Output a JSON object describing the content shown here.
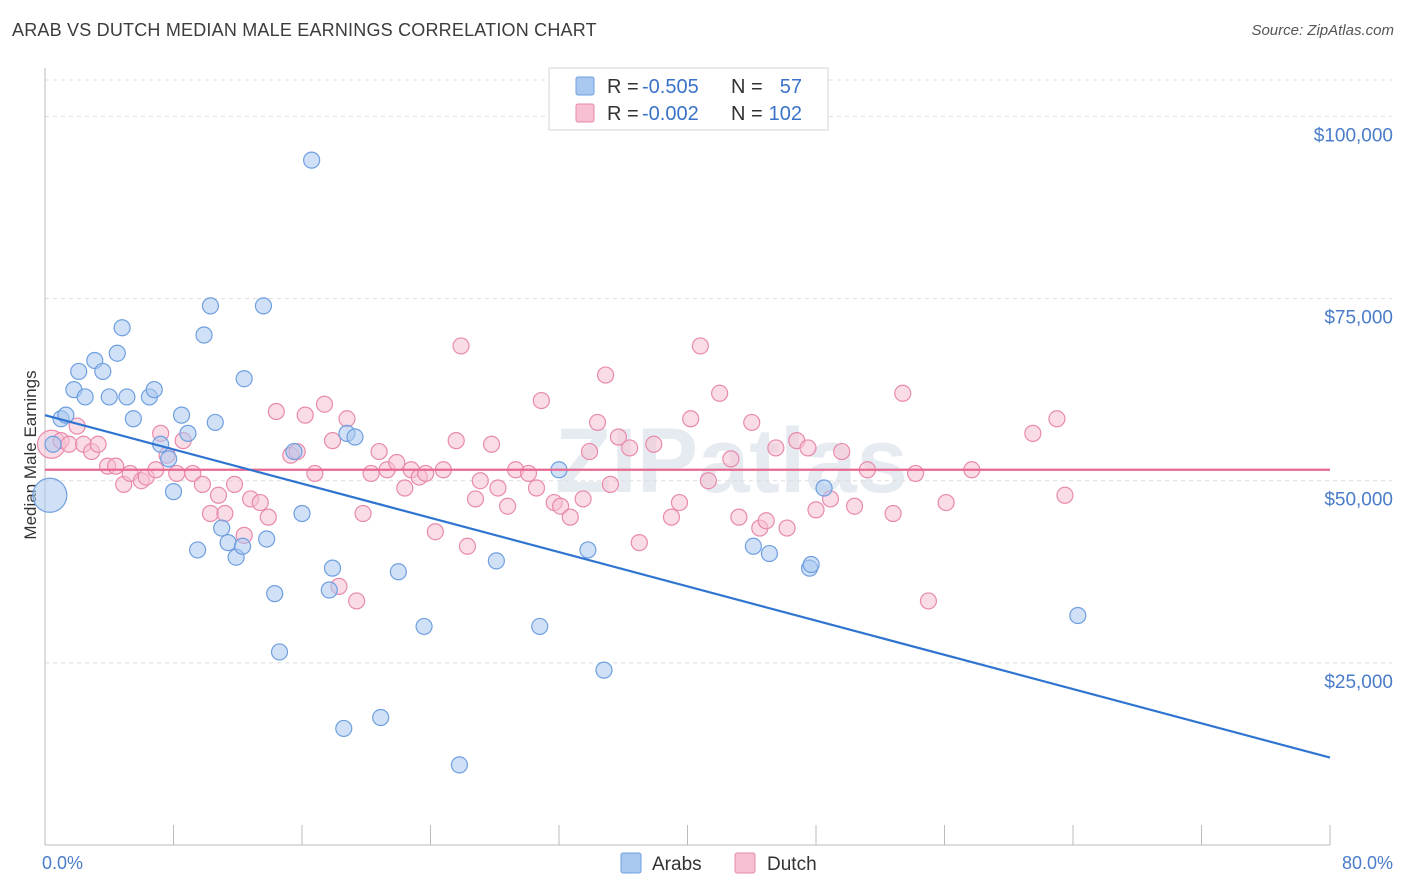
{
  "title": "ARAB VS DUTCH MEDIAN MALE EARNINGS CORRELATION CHART",
  "source": "Source: ZipAtlas.com",
  "watermark": "ZIPatlas",
  "colors": {
    "arabs_fill": "#a9c8f0",
    "arabs_stroke": "#6f9fe0",
    "arabs_line": "#2f74d0",
    "dutch_fill": "#f6bfd2",
    "dutch_stroke": "#e88aab",
    "dutch_line": "#e8688f",
    "axis_text": "#4a7cc9",
    "grid": "#dddddd"
  },
  "legend": {
    "arabs": {
      "r_label": "R =",
      "r_value": "-0.505",
      "n_label": "N =",
      "n_value": "57"
    },
    "dutch": {
      "r_label": "R =",
      "r_value": "-0.002",
      "n_label": "N =",
      "n_value": "102"
    }
  },
  "bottom_legend": {
    "arabs": "Arabs",
    "dutch": "Dutch"
  },
  "chart_data": {
    "type": "scatter",
    "title": "ARAB VS DUTCH MEDIAN MALE EARNINGS CORRELATION CHART",
    "xlabel": "",
    "ylabel": "Median Male Earnings",
    "xlim": [
      0,
      80
    ],
    "ylim": [
      0,
      105000
    ],
    "x_tick_labels": [
      "0.0%",
      "80.0%"
    ],
    "y_ticks": [
      25000,
      50000,
      75000,
      100000
    ],
    "y_tick_labels": [
      "$25,000",
      "$50,000",
      "$75,000",
      "$100,000"
    ],
    "grid": true,
    "legend_position": "top-center",
    "series": [
      {
        "name": "Arabs",
        "trend": {
          "x": [
            0,
            80
          ],
          "y": [
            59000,
            12000
          ]
        },
        "points": [
          [
            0.3,
            48000
          ],
          [
            0.5,
            55000
          ],
          [
            1.0,
            58500
          ],
          [
            1.3,
            59000
          ],
          [
            1.8,
            62500
          ],
          [
            2.1,
            65000
          ],
          [
            2.5,
            61500
          ],
          [
            3.1,
            66500
          ],
          [
            3.6,
            65000
          ],
          [
            4.0,
            61500
          ],
          [
            4.5,
            67500
          ],
          [
            4.8,
            71000
          ],
          [
            5.1,
            61500
          ],
          [
            5.5,
            58500
          ],
          [
            6.5,
            61500
          ],
          [
            6.8,
            62500
          ],
          [
            7.2,
            55000
          ],
          [
            7.7,
            53000
          ],
          [
            8.0,
            48500
          ],
          [
            8.5,
            59000
          ],
          [
            8.9,
            56500
          ],
          [
            9.5,
            40500
          ],
          [
            9.9,
            70000
          ],
          [
            10.3,
            74000
          ],
          [
            10.6,
            58000
          ],
          [
            11.0,
            43500
          ],
          [
            11.4,
            41500
          ],
          [
            11.9,
            39500
          ],
          [
            12.3,
            41000
          ],
          [
            12.4,
            64000
          ],
          [
            13.6,
            74000
          ],
          [
            13.8,
            42000
          ],
          [
            14.3,
            34500
          ],
          [
            14.6,
            26500
          ],
          [
            15.5,
            54000
          ],
          [
            16.0,
            45500
          ],
          [
            16.6,
            94000
          ],
          [
            17.7,
            35000
          ],
          [
            17.9,
            38000
          ],
          [
            18.6,
            16000
          ],
          [
            18.8,
            56500
          ],
          [
            19.3,
            56000
          ],
          [
            20.9,
            17500
          ],
          [
            22.0,
            37500
          ],
          [
            23.6,
            30000
          ],
          [
            25.8,
            11000
          ],
          [
            28.1,
            39000
          ],
          [
            30.8,
            30000
          ],
          [
            32.0,
            51500
          ],
          [
            33.8,
            40500
          ],
          [
            34.8,
            24000
          ],
          [
            44.1,
            41000
          ],
          [
            45.1,
            40000
          ],
          [
            47.6,
            38000
          ],
          [
            47.7,
            38500
          ],
          [
            48.5,
            49000
          ],
          [
            64.3,
            31500
          ]
        ]
      },
      {
        "name": "Dutch",
        "trend": {
          "x": [
            0,
            80
          ],
          "y": [
            51500,
            51500
          ]
        },
        "points": [
          [
            0.4,
            55000
          ],
          [
            1.0,
            55500
          ],
          [
            1.5,
            55000
          ],
          [
            2.0,
            57500
          ],
          [
            2.4,
            55000
          ],
          [
            2.9,
            54000
          ],
          [
            3.3,
            55000
          ],
          [
            3.9,
            52000
          ],
          [
            4.4,
            52000
          ],
          [
            4.9,
            49500
          ],
          [
            5.3,
            51000
          ],
          [
            6.0,
            50000
          ],
          [
            6.3,
            50500
          ],
          [
            6.9,
            51500
          ],
          [
            7.2,
            56500
          ],
          [
            7.6,
            53500
          ],
          [
            8.2,
            51000
          ],
          [
            8.6,
            55500
          ],
          [
            9.2,
            51000
          ],
          [
            9.8,
            49500
          ],
          [
            10.3,
            45500
          ],
          [
            10.8,
            48000
          ],
          [
            11.2,
            45500
          ],
          [
            11.8,
            49500
          ],
          [
            12.4,
            42500
          ],
          [
            12.8,
            47500
          ],
          [
            13.4,
            47000
          ],
          [
            13.9,
            45000
          ],
          [
            14.4,
            59500
          ],
          [
            15.3,
            53500
          ],
          [
            15.7,
            54000
          ],
          [
            16.2,
            59000
          ],
          [
            16.8,
            51000
          ],
          [
            17.4,
            60500
          ],
          [
            17.9,
            55500
          ],
          [
            18.3,
            35500
          ],
          [
            18.8,
            58500
          ],
          [
            19.4,
            33500
          ],
          [
            19.8,
            45500
          ],
          [
            20.3,
            51000
          ],
          [
            20.8,
            54000
          ],
          [
            21.3,
            51500
          ],
          [
            21.9,
            52500
          ],
          [
            22.4,
            49000
          ],
          [
            22.8,
            51500
          ],
          [
            23.3,
            50500
          ],
          [
            23.7,
            51000
          ],
          [
            24.3,
            43000
          ],
          [
            24.8,
            51500
          ],
          [
            25.6,
            55500
          ],
          [
            25.9,
            68500
          ],
          [
            26.3,
            41000
          ],
          [
            26.8,
            47500
          ],
          [
            27.1,
            50000
          ],
          [
            27.8,
            55000
          ],
          [
            28.2,
            49000
          ],
          [
            28.8,
            46500
          ],
          [
            29.3,
            51500
          ],
          [
            30.1,
            51000
          ],
          [
            30.6,
            49000
          ],
          [
            30.9,
            61000
          ],
          [
            31.7,
            47000
          ],
          [
            32.1,
            46500
          ],
          [
            32.7,
            45000
          ],
          [
            33.5,
            47500
          ],
          [
            33.9,
            54000
          ],
          [
            34.4,
            58000
          ],
          [
            34.9,
            64500
          ],
          [
            35.2,
            49500
          ],
          [
            35.7,
            56000
          ],
          [
            36.4,
            54500
          ],
          [
            37.0,
            41500
          ],
          [
            37.9,
            55000
          ],
          [
            39.0,
            45000
          ],
          [
            39.5,
            47000
          ],
          [
            40.2,
            58500
          ],
          [
            40.8,
            68500
          ],
          [
            41.3,
            50000
          ],
          [
            42.0,
            62000
          ],
          [
            42.7,
            53000
          ],
          [
            43.2,
            45000
          ],
          [
            44.0,
            58000
          ],
          [
            44.5,
            43500
          ],
          [
            44.9,
            44500
          ],
          [
            45.5,
            54500
          ],
          [
            46.2,
            43500
          ],
          [
            46.8,
            55500
          ],
          [
            47.5,
            54500
          ],
          [
            48.0,
            46000
          ],
          [
            48.9,
            47500
          ],
          [
            49.6,
            54000
          ],
          [
            50.4,
            46500
          ],
          [
            51.2,
            51500
          ],
          [
            52.8,
            45500
          ],
          [
            53.4,
            62000
          ],
          [
            54.2,
            51000
          ],
          [
            55.0,
            33500
          ],
          [
            56.1,
            47000
          ],
          [
            57.7,
            51500
          ],
          [
            61.5,
            56500
          ],
          [
            63.0,
            58500
          ],
          [
            63.5,
            48000
          ]
        ]
      }
    ]
  }
}
